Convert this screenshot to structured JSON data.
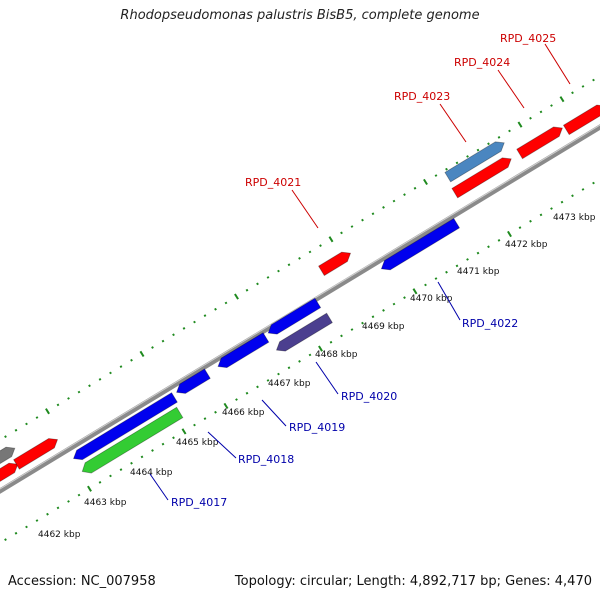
{
  "title": "Rhodopseudomonas palustris BisB5, complete genome",
  "footer": {
    "accession": "Accession: NC_007958",
    "stats": "Topology: circular; Length: 4,892,717 bp; Genes: 4,470"
  },
  "colors": {
    "backbone": "#8a8a8a",
    "tick": "#1f8a1f",
    "forward_gene": "#ff0000",
    "reverse_gene": "#0000ee",
    "rna_gene": "#4a86c0",
    "pseudo_gene": "#4b3f8f",
    "green_gene": "#33cc33",
    "gray_gene": "#777777",
    "forward_label": "#cc0000",
    "reverse_label": "#0000aa"
  },
  "ticks": [
    {
      "label": "4462 kbp"
    },
    {
      "label": "4463 kbp"
    },
    {
      "label": "4464 kbp"
    },
    {
      "label": "4465 kbp"
    },
    {
      "label": "4466 kbp"
    },
    {
      "label": "4467 kbp"
    },
    {
      "label": "4468 kbp"
    },
    {
      "label": "4469 kbp"
    },
    {
      "label": "4470 kbp"
    },
    {
      "label": "4471 kbp"
    },
    {
      "label": "4472 kbp"
    },
    {
      "label": "4473 kbp"
    }
  ],
  "forward_labels": [
    "RPD_4021",
    "RPD_4023",
    "RPD_4024",
    "RPD_4025"
  ],
  "reverse_labels": [
    "RPD_4017",
    "RPD_4018",
    "RPD_4019",
    "RPD_4020",
    "RPD_4022"
  ]
}
